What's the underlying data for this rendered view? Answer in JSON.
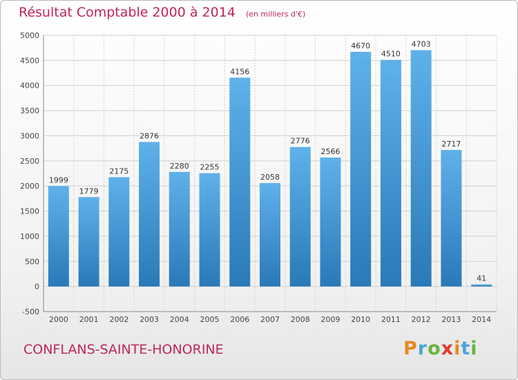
{
  "header": {
    "title": "Résultat Comptable 2000 à 2014",
    "subtitle": "(en milliers d'€)"
  },
  "footer": {
    "commune": "CONFLANS-SAINTE-HONORINE",
    "logo": "Proxiti"
  },
  "colors": {
    "accent": "#c0245c",
    "bar_light": "#5aace6",
    "bar_dark": "#2a79b8",
    "grid": "#d0d0d0"
  },
  "chart_data": {
    "type": "bar",
    "title": "Résultat Comptable 2000 à 2014",
    "subtitle": "(en milliers d'€)",
    "categories": [
      "2000",
      "2001",
      "2002",
      "2003",
      "2004",
      "2005",
      "2006",
      "2007",
      "2008",
      "2009",
      "2010",
      "2011",
      "2012",
      "2013",
      "2014"
    ],
    "values": [
      1999,
      1779,
      2175,
      2876,
      2280,
      2255,
      4156,
      2058,
      2776,
      2566,
      4670,
      4510,
      4703,
      2717,
      41
    ],
    "data_labels": [
      "1999",
      "1779",
      "2175",
      "2876",
      "2280",
      "2255",
      "4156",
      "2058",
      "2776",
      "2566",
      "4670",
      "4510",
      "4703",
      "2717",
      "41"
    ],
    "y_ticks": [
      -500,
      0,
      500,
      1000,
      1500,
      2000,
      2500,
      3000,
      3500,
      4000,
      4500,
      5000
    ],
    "ylim": [
      -500,
      5000
    ],
    "grid": true,
    "legend": "none"
  }
}
